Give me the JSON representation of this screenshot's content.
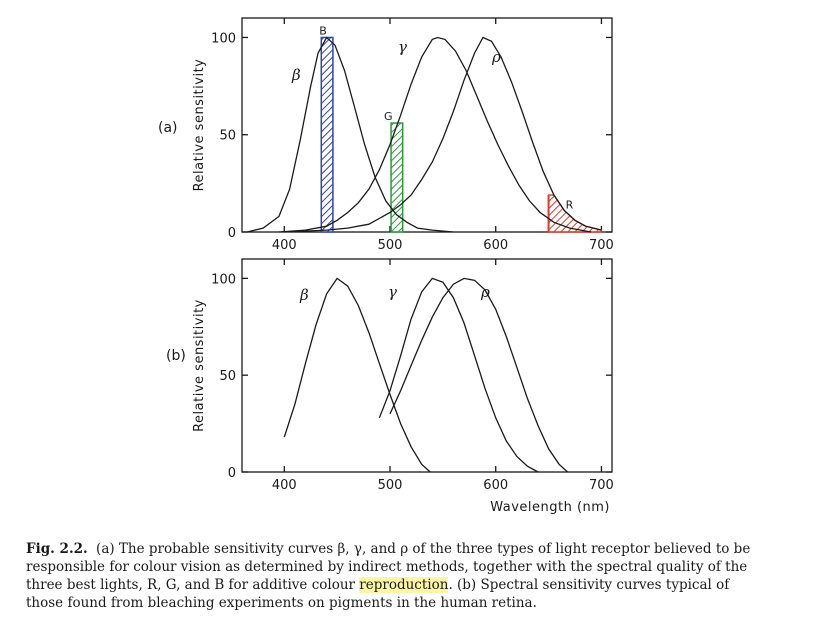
{
  "chart_data": [
    {
      "type": "line",
      "panel_label": "(a)",
      "ylabel": "Relative sensitivity",
      "xlabel": "",
      "xlim": [
        360,
        710
      ],
      "ylim": [
        0,
        110
      ],
      "x_ticks": [
        400,
        500,
        600,
        700
      ],
      "y_ticks": [
        0,
        50,
        100
      ],
      "series": [
        {
          "name": "β",
          "points": [
            [
              365,
              0
            ],
            [
              380,
              2
            ],
            [
              395,
              8
            ],
            [
              405,
              22
            ],
            [
              415,
              47
            ],
            [
              425,
              75
            ],
            [
              432,
              92
            ],
            [
              440,
              100
            ],
            [
              448,
              96
            ],
            [
              457,
              83
            ],
            [
              466,
              65
            ],
            [
              476,
              45
            ],
            [
              486,
              28
            ],
            [
              496,
              16
            ],
            [
              506,
              9
            ],
            [
              516,
              5
            ],
            [
              526,
              2
            ],
            [
              540,
              1
            ],
            [
              560,
              0
            ]
          ]
        },
        {
          "name": "γ",
          "points": [
            [
              395,
              0
            ],
            [
              420,
              1
            ],
            [
              440,
              3
            ],
            [
              450,
              6
            ],
            [
              460,
              10
            ],
            [
              470,
              15
            ],
            [
              480,
              22
            ],
            [
              490,
              32
            ],
            [
              500,
              45
            ],
            [
              510,
              60
            ],
            [
              520,
              76
            ],
            [
              530,
              90
            ],
            [
              540,
              99
            ],
            [
              545,
              100
            ],
            [
              552,
              99
            ],
            [
              562,
              93
            ],
            [
              572,
              83
            ],
            [
              582,
              70
            ],
            [
              592,
              57
            ],
            [
              602,
              45
            ],
            [
              612,
              34
            ],
            [
              622,
              24
            ],
            [
              632,
              16
            ],
            [
              642,
              10
            ],
            [
              655,
              5
            ],
            [
              670,
              2
            ],
            [
              690,
              0
            ]
          ]
        },
        {
          "name": "ρ",
          "points": [
            [
              400,
              0
            ],
            [
              440,
              1
            ],
            [
              460,
              2
            ],
            [
              480,
              4
            ],
            [
              500,
              10
            ],
            [
              510,
              14
            ],
            [
              520,
              19
            ],
            [
              530,
              27
            ],
            [
              540,
              36
            ],
            [
              550,
              48
            ],
            [
              560,
              62
            ],
            [
              570,
              78
            ],
            [
              580,
              92
            ],
            [
              588,
              100
            ],
            [
              596,
              98
            ],
            [
              605,
              90
            ],
            [
              615,
              77
            ],
            [
              625,
              62
            ],
            [
              635,
              46
            ],
            [
              645,
              31
            ],
            [
              655,
              19
            ],
            [
              665,
              11
            ],
            [
              675,
              6
            ],
            [
              685,
              3
            ],
            [
              700,
              1
            ]
          ]
        }
      ],
      "bands": [
        {
          "label": "B",
          "range": [
            435,
            446
          ],
          "color": "#2c44b8"
        },
        {
          "label": "G",
          "range": [
            501,
            512
          ],
          "color": "#2c9a3a"
        },
        {
          "label": "R",
          "range": [
            650,
            690
          ],
          "color": "#dd3b2a"
        }
      ]
    },
    {
      "type": "line",
      "panel_label": "(b)",
      "ylabel": "Relative sensitivity",
      "xlabel": "Wavelength (nm)",
      "xlim": [
        360,
        710
      ],
      "ylim": [
        0,
        110
      ],
      "x_ticks": [
        400,
        500,
        600,
        700
      ],
      "y_ticks": [
        0,
        50,
        100
      ],
      "series": [
        {
          "name": "β",
          "points": [
            [
              400,
              18
            ],
            [
              410,
              35
            ],
            [
              420,
              56
            ],
            [
              430,
              76
            ],
            [
              440,
              92
            ],
            [
              450,
              100
            ],
            [
              460,
              96
            ],
            [
              470,
              86
            ],
            [
              480,
              72
            ],
            [
              490,
              56
            ],
            [
              500,
              40
            ],
            [
              510,
              25
            ],
            [
              520,
              13
            ],
            [
              530,
              4
            ],
            [
              538,
              0
            ]
          ]
        },
        {
          "name": "γ",
          "points": [
            [
              490,
              28
            ],
            [
              500,
              42
            ],
            [
              510,
              60
            ],
            [
              520,
              79
            ],
            [
              530,
              93
            ],
            [
              540,
              100
            ],
            [
              550,
              98
            ],
            [
              560,
              90
            ],
            [
              570,
              77
            ],
            [
              580,
              60
            ],
            [
              590,
              43
            ],
            [
              600,
              28
            ],
            [
              610,
              16
            ],
            [
              620,
              8
            ],
            [
              630,
              3
            ],
            [
              640,
              0
            ]
          ]
        },
        {
          "name": "ρ",
          "points": [
            [
              500,
              30
            ],
            [
              510,
              42
            ],
            [
              520,
              55
            ],
            [
              530,
              68
            ],
            [
              540,
              80
            ],
            [
              550,
              90
            ],
            [
              560,
              97
            ],
            [
              570,
              100
            ],
            [
              580,
              99
            ],
            [
              590,
              94
            ],
            [
              600,
              84
            ],
            [
              610,
              70
            ],
            [
              620,
              54
            ],
            [
              630,
              38
            ],
            [
              640,
              24
            ],
            [
              650,
              12
            ],
            [
              660,
              4
            ],
            [
              668,
              0
            ]
          ]
        }
      ]
    }
  ],
  "caption": {
    "fig_num": "Fig. 2.2.",
    "text_before": "(a) The probable sensitivity curves β, γ, and ρ of the three types of light receptor believed to be responsible for colour vision as determined by indirect methods, together with the spectral quality of the three best lights, R, G, and B for additive colour ",
    "highlighted": "reproduction",
    "text_after": ". (b) Spectral sensitivity curves typical of those found from bleaching experiments on pigments in the human retina."
  }
}
